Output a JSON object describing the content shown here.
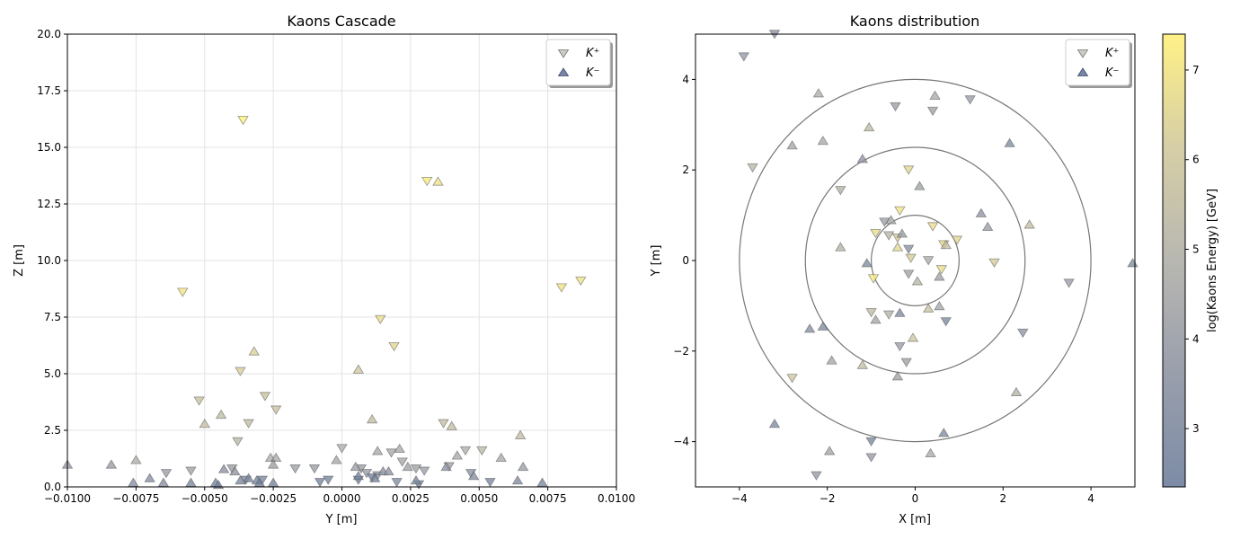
{
  "chart_data": [
    {
      "type": "scatter",
      "title": "Kaons Cascade",
      "xlabel": "Y [m]",
      "ylabel": "Z [m]",
      "xlim": [
        -0.01,
        0.01
      ],
      "ylim": [
        0,
        20
      ],
      "xticks": [
        "−0.0100",
        "−0.0075",
        "−0.0050",
        "−0.0025",
        "0.0000",
        "0.0025",
        "0.0050",
        "0.0075",
        "0.0100"
      ],
      "yticks": [
        "0.0",
        "2.5",
        "5.0",
        "7.5",
        "10.0",
        "12.5",
        "15.0",
        "17.5",
        "20.0"
      ],
      "grid": true,
      "legend": {
        "placement": "top-right",
        "entries": [
          "K⁺",
          "K⁻"
        ]
      },
      "series": [
        {
          "name": "K⁺",
          "marker": "triangle-down",
          "points": [
            [
              -0.0036,
              16.2,
              7.4
            ],
            [
              -0.0058,
              8.6,
              7.1
            ],
            [
              0.0031,
              13.5,
              7.2
            ],
            [
              0.0087,
              9.1,
              7.0
            ],
            [
              0.008,
              8.8,
              7.0
            ],
            [
              0.0014,
              7.4,
              6.8
            ],
            [
              0.0019,
              6.2,
              6.6
            ],
            [
              -0.0037,
              5.1,
              6.3
            ],
            [
              -0.0052,
              3.8,
              5.8
            ],
            [
              -0.0028,
              4.0,
              5.8
            ],
            [
              -0.0024,
              3.4,
              5.8
            ],
            [
              -0.0034,
              2.8,
              5.5
            ],
            [
              0.0037,
              2.8,
              5.6
            ],
            [
              0.0045,
              1.6,
              4.8
            ],
            [
              0.0051,
              1.6,
              5.3
            ],
            [
              0.0,
              1.7,
              4.8
            ],
            [
              -0.0038,
              2.0,
              5.2
            ],
            [
              0.0018,
              1.5,
              4.5
            ],
            [
              0.0022,
              1.1,
              4.4
            ],
            [
              0.0027,
              0.8,
              4.2
            ],
            [
              -0.0064,
              0.6,
              4.0
            ],
            [
              -0.0055,
              0.7,
              4.2
            ],
            [
              -0.004,
              0.8,
              4.0
            ],
            [
              -0.0017,
              0.8,
              4.2
            ],
            [
              -0.001,
              0.8,
              4.0
            ],
            [
              0.0007,
              0.8,
              4.0
            ],
            [
              0.0009,
              0.6,
              3.8
            ],
            [
              0.0013,
              0.5,
              3.8
            ],
            [
              0.003,
              0.7,
              4.0
            ],
            [
              0.0039,
              0.9,
              4.3
            ],
            [
              0.0047,
              0.6,
              3.5
            ],
            [
              0.0054,
              0.2,
              2.8
            ],
            [
              -0.0035,
              0.3,
              3.0
            ],
            [
              -0.0029,
              0.3,
              2.8
            ],
            [
              -0.0008,
              0.2,
              2.6
            ],
            [
              -0.0005,
              0.3,
              2.6
            ],
            [
              0.0006,
              0.3,
              2.4
            ],
            [
              0.0011,
              0.4,
              2.4
            ],
            [
              0.002,
              0.2,
              3.0
            ],
            [
              0.0028,
              0.1,
              2.7
            ]
          ]
        },
        {
          "name": "K⁻",
          "marker": "triangle-up",
          "points": [
            [
              0.0035,
              13.5,
              7.0
            ],
            [
              -0.0032,
              6.0,
              6.4
            ],
            [
              0.0006,
              5.2,
              6.1
            ],
            [
              -0.0044,
              3.2,
              5.5
            ],
            [
              -0.005,
              2.8,
              5.6
            ],
            [
              0.0011,
              3.0,
              5.5
            ],
            [
              0.004,
              2.7,
              5.5
            ],
            [
              0.0065,
              2.3,
              5.6
            ],
            [
              -0.0075,
              1.2,
              4.8
            ],
            [
              -0.0026,
              1.3,
              4.8
            ],
            [
              -0.0024,
              1.3,
              4.6
            ],
            [
              0.0013,
              1.6,
              4.6
            ],
            [
              0.0021,
              1.7,
              4.6
            ],
            [
              0.0042,
              1.4,
              4.6
            ],
            [
              0.0058,
              1.3,
              4.6
            ],
            [
              -0.01,
              1.0,
              4.0
            ],
            [
              -0.0084,
              1.0,
              4.0
            ],
            [
              -0.0043,
              0.8,
              3.4
            ],
            [
              -0.0025,
              1.0,
              4.2
            ],
            [
              0.0005,
              0.9,
              4.0
            ],
            [
              0.0015,
              0.7,
              3.6
            ],
            [
              0.0038,
              0.9,
              3.6
            ],
            [
              0.0066,
              0.9,
              4.0
            ],
            [
              -0.007,
              0.4,
              3.2
            ],
            [
              -0.0039,
              0.7,
              3.6
            ],
            [
              -0.0002,
              1.2,
              4.5
            ],
            [
              0.0024,
              0.9,
              4.2
            ],
            [
              -0.0076,
              0.2,
              3.2
            ],
            [
              -0.0065,
              0.2,
              3.2
            ],
            [
              -0.0055,
              0.2,
              2.8
            ],
            [
              -0.0046,
              0.2,
              2.6
            ],
            [
              -0.0045,
              0.1,
              2.6
            ],
            [
              -0.0037,
              0.3,
              2.8
            ],
            [
              -0.0034,
              0.4,
              2.8
            ],
            [
              -0.0031,
              0.3,
              2.6
            ],
            [
              -0.003,
              0.2,
              2.4
            ],
            [
              -0.0025,
              0.2,
              2.6
            ],
            [
              0.0006,
              0.5,
              2.6
            ],
            [
              0.0012,
              0.4,
              2.6
            ],
            [
              0.0017,
              0.7,
              3.6
            ],
            [
              0.0027,
              0.3,
              2.8
            ],
            [
              0.0048,
              0.5,
              3.2
            ],
            [
              0.0064,
              0.3,
              3.0
            ],
            [
              0.0073,
              0.2,
              2.8
            ]
          ]
        }
      ]
    },
    {
      "type": "scatter",
      "title": "Kaons distribution",
      "xlabel": "X [m]",
      "ylabel": "Y [m]",
      "xlim": [
        -5,
        5
      ],
      "ylim": [
        -5,
        5
      ],
      "xticks": [
        "−4",
        "−2",
        "0",
        "2",
        "4"
      ],
      "yticks": [
        "−4",
        "−2",
        "0",
        "2",
        "4"
      ],
      "grid": false,
      "circles": [
        1,
        2.5,
        4
      ],
      "legend": {
        "placement": "top-right",
        "entries": [
          "K⁺",
          "K⁻"
        ]
      },
      "colorbar": {
        "label": "log(Kaons Energy) [GeV]",
        "min": 2.35,
        "max": 7.4,
        "ticks": [
          "3",
          "4",
          "5",
          "6",
          "7"
        ],
        "colors": [
          "#6e7f9c",
          "#8e94a3",
          "#b0afa8",
          "#d1c99c",
          "#ffef7a"
        ]
      },
      "series": [
        {
          "name": "K⁺",
          "marker": "triangle-down",
          "points": [
            [
              -3.9,
              4.5,
              3.8
            ],
            [
              -3.7,
              2.05,
              5.2
            ],
            [
              -0.45,
              3.4,
              4.0
            ],
            [
              0.4,
              3.3,
              4.2
            ],
            [
              1.25,
              3.55,
              4.0
            ],
            [
              -0.15,
              2.0,
              6.6
            ],
            [
              -1.7,
              1.55,
              5.0
            ],
            [
              -0.35,
              1.1,
              7.0
            ],
            [
              -0.7,
              0.85,
              4.0
            ],
            [
              -0.9,
              0.6,
              6.8
            ],
            [
              -0.6,
              0.55,
              5.2
            ],
            [
              -0.4,
              0.5,
              6.2
            ],
            [
              -0.15,
              0.25,
              3.4
            ],
            [
              0.4,
              0.75,
              6.8
            ],
            [
              0.95,
              0.45,
              6.6
            ],
            [
              0.65,
              0.35,
              6.8
            ],
            [
              -0.1,
              0.05,
              6.2
            ],
            [
              0.3,
              0.0,
              4.6
            ],
            [
              1.8,
              -0.05,
              6.2
            ],
            [
              3.5,
              -0.5,
              4.0
            ],
            [
              -0.95,
              -0.4,
              7.3
            ],
            [
              -0.15,
              -0.3,
              4.2
            ],
            [
              0.6,
              -0.2,
              6.8
            ],
            [
              -1.0,
              -1.15,
              5.4
            ],
            [
              -0.6,
              -1.2,
              5.0
            ],
            [
              0.7,
              -1.35,
              2.9
            ],
            [
              2.45,
              -1.6,
              3.6
            ],
            [
              -0.35,
              -1.9,
              4.0
            ],
            [
              -0.2,
              -2.25,
              4.2
            ],
            [
              -2.8,
              -2.6,
              6.0
            ],
            [
              -1.0,
              -4.0,
              2.8
            ],
            [
              -1.0,
              -4.35,
              3.9
            ],
            [
              -2.25,
              -4.75,
              3.8
            ],
            [
              -3.2,
              5.0,
              3.4
            ]
          ]
        },
        {
          "name": "K⁻",
          "marker": "triangle-up",
          "points": [
            [
              -2.2,
              3.7,
              4.8
            ],
            [
              0.45,
              3.65,
              4.6
            ],
            [
              -1.05,
              2.95,
              5.4
            ],
            [
              -2.1,
              2.65,
              4.6
            ],
            [
              -2.8,
              2.55,
              4.4
            ],
            [
              -1.2,
              2.25,
              3.6
            ],
            [
              2.15,
              2.6,
              3.0
            ],
            [
              0.1,
              1.65,
              4.2
            ],
            [
              1.5,
              1.05,
              3.6
            ],
            [
              1.65,
              0.75,
              4.0
            ],
            [
              2.6,
              0.8,
              5.6
            ],
            [
              -0.55,
              0.9,
              4.4
            ],
            [
              -0.3,
              0.6,
              4.0
            ],
            [
              -1.7,
              0.3,
              5.0
            ],
            [
              -0.4,
              0.3,
              6.6
            ],
            [
              0.7,
              0.35,
              5.6
            ],
            [
              -1.1,
              -0.05,
              3.0
            ],
            [
              4.95,
              -0.05,
              3.0
            ],
            [
              0.05,
              -0.45,
              5.2
            ],
            [
              0.55,
              -0.35,
              4.2
            ],
            [
              -0.9,
              -1.3,
              4.4
            ],
            [
              0.3,
              -1.05,
              5.8
            ],
            [
              0.55,
              -1.0,
              4.4
            ],
            [
              -0.35,
              -1.15,
              3.0
            ],
            [
              -2.4,
              -1.5,
              3.2
            ],
            [
              -2.1,
              -1.45,
              3.0
            ],
            [
              -0.05,
              -1.7,
              6.0
            ],
            [
              -1.9,
              -2.2,
              4.4
            ],
            [
              -1.2,
              -2.3,
              5.6
            ],
            [
              -0.4,
              -2.55,
              4.2
            ],
            [
              2.3,
              -2.9,
              5.0
            ],
            [
              -3.2,
              -3.6,
              3.0
            ],
            [
              0.65,
              -3.8,
              3.0
            ],
            [
              0.35,
              -4.25,
              4.6
            ],
            [
              -1.95,
              -4.2,
              4.4
            ]
          ]
        }
      ]
    }
  ]
}
